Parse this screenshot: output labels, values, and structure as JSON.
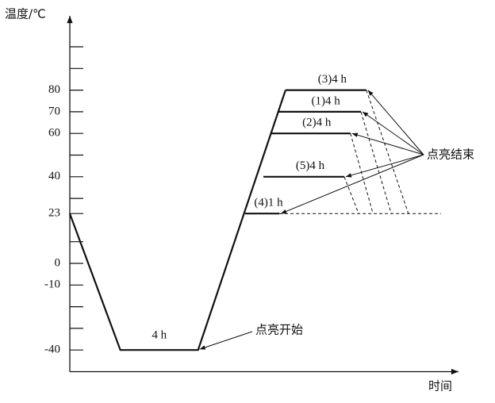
{
  "chart_data": {
    "type": "line",
    "y_label": "温度/℃",
    "x_label": "时间",
    "ylim": [
      -50,
      110
    ],
    "xlim": [
      0,
      100
    ],
    "yticks": [
      80,
      70,
      60,
      40,
      23,
      0,
      -10,
      -40
    ],
    "minor_yticks": [
      100,
      90,
      50,
      30,
      10,
      -20,
      -30
    ],
    "profile": {
      "label": "4 h",
      "x": [
        0,
        13,
        33,
        55.5
      ],
      "values": [
        23,
        -40,
        -40,
        80
      ]
    },
    "plateaus": [
      {
        "label": "(3)4 h",
        "x": [
          55.5,
          76.3
        ],
        "values": [
          80,
          80
        ],
        "cooling_x": [
          76.3,
          87.1
        ],
        "cooling_values": [
          80,
          23
        ]
      },
      {
        "label": "(1)4 h",
        "x": [
          53.5,
          74.9
        ],
        "values": [
          70,
          70
        ],
        "cooling_x": [
          74.9,
          82.7
        ],
        "cooling_values": [
          70,
          23
        ]
      },
      {
        "label": "(2)4 h",
        "x": [
          51.6,
          72.2
        ],
        "values": [
          60,
          60
        ],
        "cooling_x": [
          72.2,
          78.0
        ],
        "cooling_values": [
          60,
          23
        ]
      },
      {
        "label": "(5)4 h",
        "x": [
          49.8,
          70.6
        ],
        "values": [
          40,
          40
        ],
        "cooling_x": [
          70.6,
          74.3
        ],
        "cooling_values": [
          40,
          23
        ]
      },
      {
        "label": "(4)1 h",
        "x": [
          45.1,
          53.9
        ],
        "values": [
          23,
          23
        ]
      }
    ],
    "baseline": {
      "x": [
        53.9,
        95.5
      ],
      "values": [
        23,
        23
      ]
    },
    "start_label": "点亮开始",
    "end_label": "点亮结束"
  }
}
